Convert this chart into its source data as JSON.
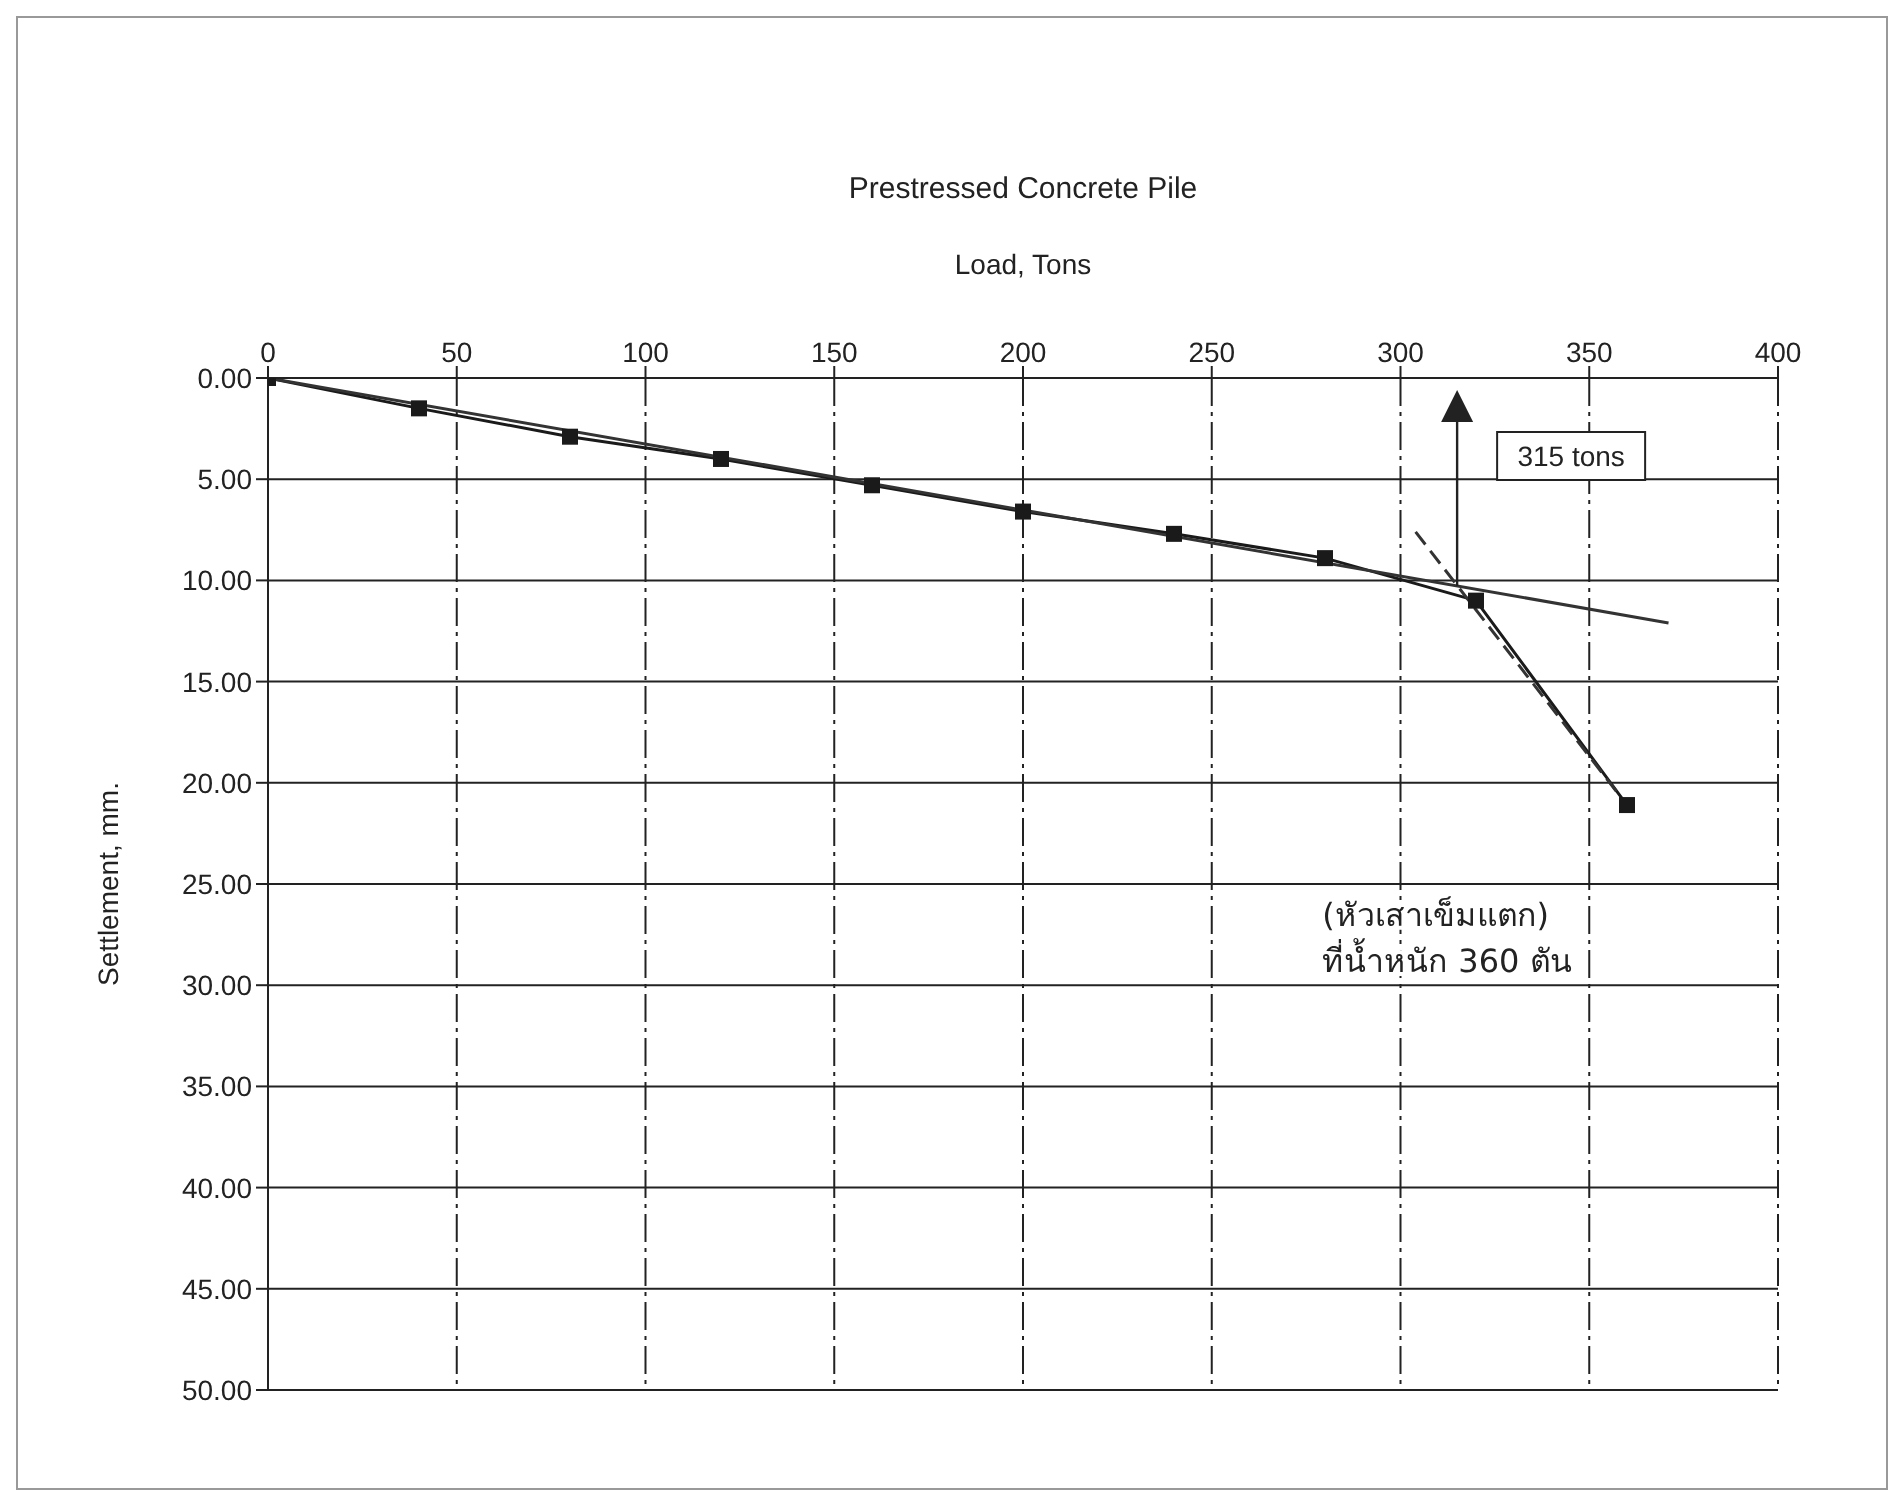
{
  "chart_data": {
    "type": "line",
    "title": "Prestressed Concrete Pile",
    "xlabel": "Load, Tons",
    "ylabel": "Settlement, mm.",
    "marker": "square",
    "grid": true,
    "xlim": [
      0,
      400
    ],
    "xticks": [
      0,
      50,
      100,
      150,
      200,
      250,
      300,
      350,
      400
    ],
    "ylim": [
      50,
      0
    ],
    "yticks": [
      {
        "value": 0,
        "label": "0.00"
      },
      {
        "value": 5,
        "label": "5.00"
      },
      {
        "value": 10,
        "label": "10.00"
      },
      {
        "value": 15,
        "label": "15.00"
      },
      {
        "value": 20,
        "label": "20.00"
      },
      {
        "value": 25,
        "label": "25.00"
      },
      {
        "value": 30,
        "label": "30.00"
      },
      {
        "value": 35,
        "label": "35.00"
      },
      {
        "value": 40,
        "label": "40.00"
      },
      {
        "value": 45,
        "label": "45.00"
      },
      {
        "value": 50,
        "label": "50.00"
      }
    ],
    "series": [
      {
        "color": "#1a1a1a",
        "x": [
          0,
          40,
          80,
          120,
          160,
          200,
          240,
          280,
          320,
          360
        ],
        "values": [
          0,
          1.5,
          2.9,
          4.0,
          5.3,
          6.6,
          7.7,
          8.9,
          11.0,
          21.1
        ]
      },
      {
        "type": "line",
        "marker": "none",
        "color": "#333333",
        "x": [
          0,
          371
        ],
        "values": [
          0,
          12.1
        ]
      },
      {
        "type": "line",
        "marker": "none",
        "line_style": "dashed",
        "color": "#333333",
        "x": [
          304,
          360
        ],
        "values": [
          7.6,
          21.1
        ]
      }
    ],
    "ref_lines": [
      {
        "axis": "x",
        "value": 315,
        "label": "315 tons",
        "color": "#222222"
      }
    ],
    "annotations": [
      "(หัวเสาเข็มแตก)",
      "ที่น้ำหนัก 360 ตัน"
    ]
  }
}
